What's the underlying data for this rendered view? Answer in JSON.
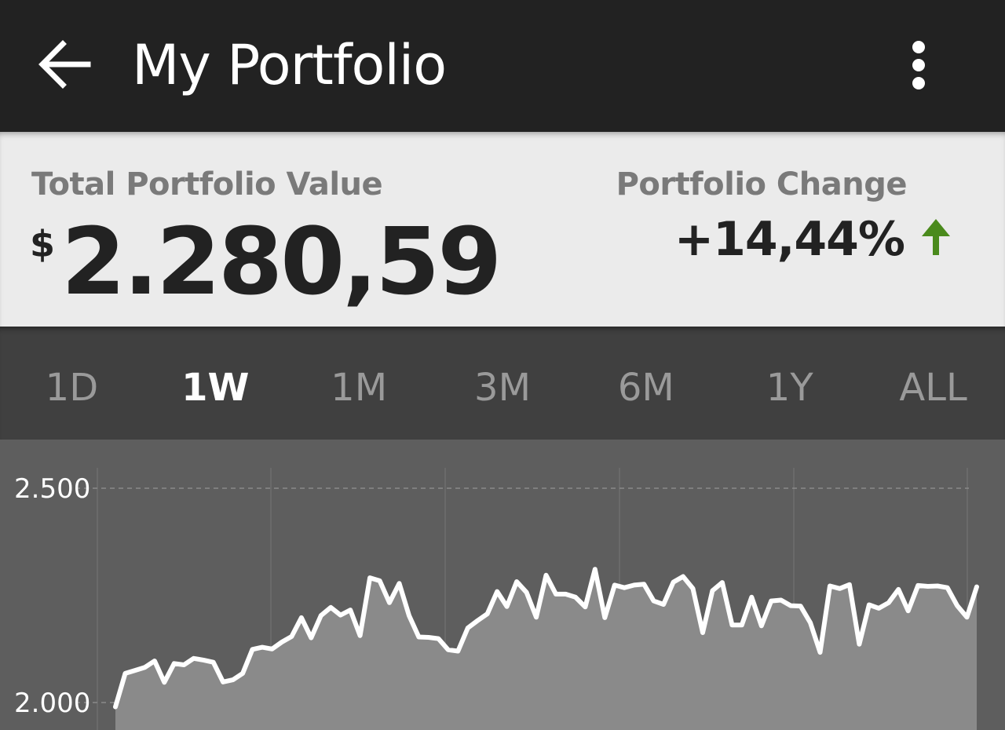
{
  "appbar": {
    "title": "My Portfolio",
    "back_icon": "arrow-back-icon",
    "menu_icon": "more-vertical-icon"
  },
  "summary": {
    "total_label": "Total Portfolio Value",
    "currency_symbol": "$",
    "total_value": "2.280,59",
    "change_label": "Portfolio Change",
    "change_value": "+14,44%",
    "change_direction_icon": "arrow-up-icon",
    "change_color": "#4a8a1c"
  },
  "range_tabs": {
    "items": [
      "1D",
      "1W",
      "1M",
      "3M",
      "6M",
      "1Y",
      "ALL"
    ],
    "selected": "1W"
  },
  "chart_data": {
    "type": "area",
    "title": "",
    "xlabel": "",
    "ylabel": "",
    "y_tick_labels": [
      "2.500",
      "2.000"
    ],
    "y_ticks": [
      2500,
      2000
    ],
    "ylim": [
      1950,
      2550
    ],
    "grid": true,
    "line_color": "#ffffff",
    "fill_color": "#8a8a8a",
    "values": [
      1990,
      2068,
      2075,
      2082,
      2097,
      2047,
      2091,
      2088,
      2103,
      2099,
      2094,
      2048,
      2053,
      2068,
      2124,
      2129,
      2125,
      2141,
      2154,
      2198,
      2151,
      2203,
      2222,
      2204,
      2216,
      2156,
      2291,
      2284,
      2233,
      2278,
      2203,
      2153,
      2152,
      2149,
      2123,
      2120,
      2174,
      2191,
      2207,
      2259,
      2224,
      2282,
      2257,
      2199,
      2297,
      2253,
      2253,
      2246,
      2223,
      2311,
      2198,
      2274,
      2268,
      2274,
      2276,
      2237,
      2229,
      2281,
      2294,
      2266,
      2163,
      2261,
      2280,
      2181,
      2181,
      2246,
      2179,
      2237,
      2239,
      2226,
      2225,
      2186,
      2117,
      2272,
      2266,
      2275,
      2136,
      2228,
      2220,
      2233,
      2264,
      2214,
      2273,
      2271,
      2272,
      2268,
      2226,
      2199,
      2270
    ]
  }
}
